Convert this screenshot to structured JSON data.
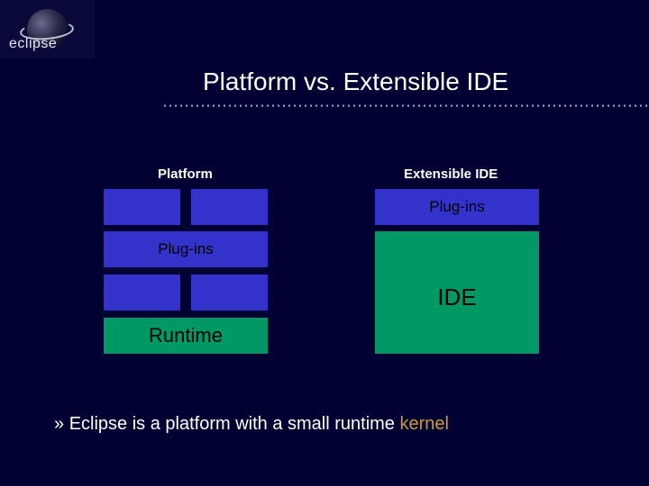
{
  "logo": {
    "text": "eclipse"
  },
  "title": "Platform vs. Extensible IDE",
  "headers": {
    "left": "Platform",
    "right": "Extensible IDE"
  },
  "left_column": {
    "plugins_label": "Plug-ins",
    "runtime_label": "Runtime",
    "small_block_color": "#3333cc",
    "runtime_color": "#009966"
  },
  "right_column": {
    "plugins_label": "Plug-ins",
    "ide_label": "IDE",
    "plugins_color": "#3333cc",
    "ide_color": "#009966"
  },
  "bullet": {
    "marker": "»",
    "text_a": "Eclipse is a platform with a small runtime ",
    "text_kernel": "kernel"
  },
  "colors": {
    "background": "#000033",
    "text": "#ffffff",
    "accent": "#cc9933"
  }
}
